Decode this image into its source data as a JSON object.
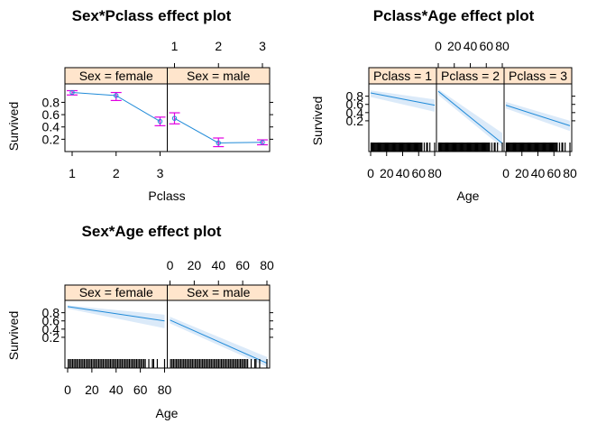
{
  "chart_data": [
    {
      "type": "line",
      "title": "Sex*Pclass effect plot",
      "xlabel": "Pclass",
      "ylabel": "Survived",
      "panel_var": "Sex",
      "panels": [
        "Sex = female",
        "Sex = male"
      ],
      "categories": [
        "1",
        "2",
        "3"
      ],
      "yticks": [
        "0.2",
        "0.4",
        "0.6",
        "0.8"
      ],
      "ylim": [
        0,
        1.1
      ],
      "series": [
        {
          "panel": "Sex = female",
          "values": [
            0.96,
            0.91,
            0.49
          ],
          "lower": [
            0.92,
            0.83,
            0.42
          ],
          "upper": [
            0.99,
            0.96,
            0.56
          ]
        },
        {
          "panel": "Sex = male",
          "values": [
            0.54,
            0.14,
            0.15
          ],
          "lower": [
            0.45,
            0.08,
            0.11
          ],
          "upper": [
            0.63,
            0.22,
            0.19
          ]
        }
      ]
    },
    {
      "type": "line",
      "title": "Pclass*Age effect plot",
      "xlabel": "Age",
      "ylabel": "Survived",
      "panel_var": "Pclass",
      "panels": [
        "Pclass = 1",
        "Pclass = 2",
        "Pclass = 3"
      ],
      "xticks": [
        "0",
        "20",
        "40",
        "60",
        "80"
      ],
      "xlim": [
        0,
        80
      ],
      "yticks": [
        "0.2",
        "0.4",
        "0.6",
        "0.8"
      ],
      "ylim": [
        -0.55,
        1.1
      ],
      "series": [
        {
          "panel": "Pclass = 1",
          "x": [
            0,
            80
          ],
          "values": [
            0.88,
            0.58
          ],
          "lower": [
            0.78,
            0.42
          ],
          "upper": [
            0.94,
            0.72
          ]
        },
        {
          "panel": "Pclass = 2",
          "x": [
            0,
            80
          ],
          "values": [
            0.92,
            -0.35
          ],
          "lower": [
            0.83,
            -0.45
          ],
          "upper": [
            0.97,
            -0.1
          ]
        },
        {
          "panel": "Pclass = 3",
          "x": [
            0,
            80
          ],
          "values": [
            0.58,
            0.08
          ],
          "lower": [
            0.5,
            -0.05
          ],
          "upper": [
            0.66,
            0.2
          ]
        }
      ]
    },
    {
      "type": "line",
      "title": "Sex*Age effect plot",
      "xlabel": "Age",
      "ylabel": "Survived",
      "panel_var": "Sex",
      "panels": [
        "Sex = female",
        "Sex = male"
      ],
      "xticks": [
        "0",
        "20",
        "40",
        "60",
        "80"
      ],
      "xlim": [
        0,
        80
      ],
      "yticks": [
        "0.2",
        "0.4",
        "0.6",
        "0.8"
      ],
      "ylim": [
        -0.55,
        1.1
      ],
      "series": [
        {
          "panel": "Sex = female",
          "x": [
            0,
            80
          ],
          "values": [
            0.95,
            0.6
          ],
          "lower": [
            0.9,
            0.42
          ],
          "upper": [
            0.98,
            0.75
          ]
        },
        {
          "panel": "Sex = male",
          "x": [
            0,
            80
          ],
          "values": [
            0.62,
            -0.43
          ],
          "lower": [
            0.54,
            -0.52
          ],
          "upper": [
            0.7,
            -0.28
          ]
        }
      ]
    }
  ]
}
